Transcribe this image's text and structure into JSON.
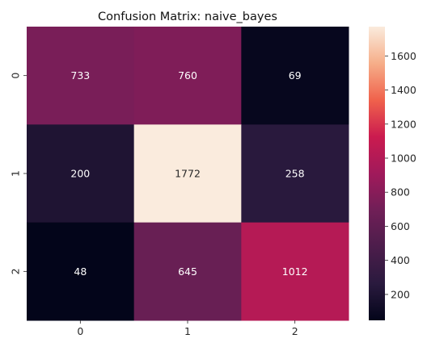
{
  "chart_data": {
    "type": "heatmap",
    "title": "Confusion Matrix: naive_bayes",
    "xlabel": "",
    "ylabel": "",
    "x_categories": [
      "0",
      "1",
      "2"
    ],
    "y_categories": [
      "0",
      "1",
      "2"
    ],
    "matrix": [
      [
        733,
        760,
        69
      ],
      [
        200,
        1772,
        258
      ],
      [
        48,
        645,
        1012
      ]
    ],
    "cell_labels": [
      [
        "733",
        "760",
        "69"
      ],
      [
        "200",
        "1772",
        "258"
      ],
      [
        "48",
        "645",
        "1012"
      ]
    ],
    "colormap": "rocket",
    "colorbar": {
      "vmin": 48,
      "vmax": 1772,
      "ticks": [
        200,
        400,
        600,
        800,
        1000,
        1200,
        1400,
        1600
      ],
      "tick_labels": [
        "200",
        "400",
        "600",
        "800",
        "1000",
        "1200",
        "1400",
        "1600"
      ]
    },
    "grid": false
  }
}
